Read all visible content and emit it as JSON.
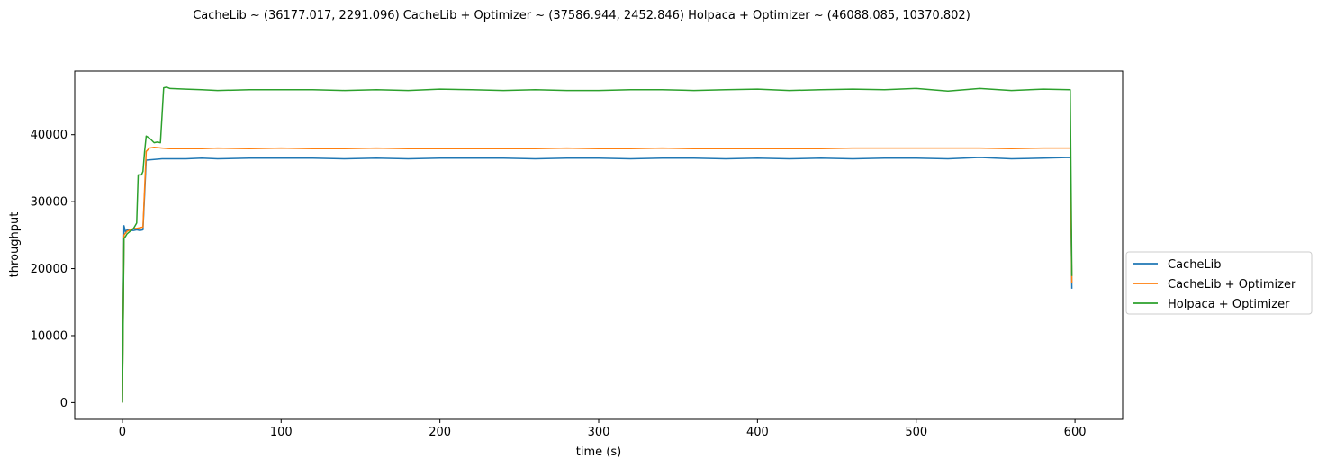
{
  "chart_data": {
    "type": "line",
    "title": "CacheLib ~ (36177.017, 2291.096)   CacheLib + Optimizer ~ (37586.944, 2452.846)   Holpaca + Optimizer ~ (46088.085, 10370.802)",
    "xlabel": "time (s)",
    "ylabel": "throughput",
    "xlim": [
      -30,
      630
    ],
    "ylim": [
      -2500,
      49500
    ],
    "xticks": [
      0,
      100,
      200,
      300,
      400,
      500,
      600
    ],
    "yticks": [
      0,
      10000,
      20000,
      30000,
      40000
    ],
    "grid": false,
    "legend_placement": "right, outside plot",
    "series": [
      {
        "name": "CacheLib",
        "color": "#1f77b4",
        "x": [
          0,
          1,
          2,
          3,
          5,
          7,
          9,
          11,
          13,
          15,
          20,
          25,
          30,
          40,
          50,
          60,
          80,
          100,
          120,
          140,
          160,
          180,
          200,
          220,
          240,
          260,
          280,
          300,
          320,
          340,
          360,
          380,
          400,
          420,
          440,
          460,
          480,
          500,
          520,
          540,
          560,
          580,
          597,
          598
        ],
        "y": [
          0,
          26400,
          25500,
          25800,
          25700,
          25700,
          25800,
          25700,
          25800,
          36200,
          36300,
          36400,
          36400,
          36400,
          36500,
          36400,
          36500,
          36500,
          36500,
          36400,
          36500,
          36400,
          36500,
          36500,
          36500,
          36400,
          36500,
          36500,
          36400,
          36500,
          36500,
          36400,
          36500,
          36400,
          36500,
          36400,
          36500,
          36500,
          36400,
          36600,
          36400,
          36500,
          36600,
          17000
        ]
      },
      {
        "name": "CacheLib + Optimizer",
        "color": "#ff7f0e",
        "x": [
          0,
          1,
          2,
          3,
          5,
          7,
          9,
          11,
          13,
          15,
          17,
          20,
          25,
          30,
          40,
          50,
          60,
          80,
          100,
          120,
          140,
          160,
          180,
          200,
          220,
          240,
          260,
          280,
          300,
          320,
          340,
          360,
          380,
          400,
          420,
          440,
          460,
          480,
          500,
          520,
          540,
          560,
          580,
          597,
          598
        ],
        "y": [
          0,
          25000,
          25300,
          25600,
          25800,
          26000,
          26000,
          26100,
          26200,
          37500,
          38000,
          38100,
          38000,
          37900,
          37900,
          37900,
          38000,
          37900,
          38000,
          37900,
          37900,
          38000,
          37900,
          37900,
          37900,
          37900,
          37900,
          38000,
          37900,
          37900,
          38000,
          37900,
          37900,
          37900,
          37900,
          37900,
          38000,
          38000,
          38000,
          38000,
          38000,
          37900,
          38000,
          38000,
          17800
        ]
      },
      {
        "name": "Holpaca + Optimizer",
        "color": "#2ca02c",
        "x": [
          0,
          1,
          2,
          3,
          5,
          7,
          9,
          10,
          12,
          13,
          14,
          15,
          17,
          20,
          22,
          24,
          26,
          28,
          30,
          40,
          50,
          60,
          80,
          100,
          120,
          140,
          160,
          180,
          200,
          220,
          240,
          260,
          280,
          300,
          320,
          340,
          360,
          380,
          400,
          420,
          440,
          460,
          480,
          500,
          520,
          540,
          560,
          580,
          597,
          598
        ],
        "y": [
          0,
          24500,
          24800,
          25200,
          25600,
          26000,
          26800,
          34000,
          34000,
          34500,
          37500,
          39800,
          39500,
          38800,
          38900,
          38800,
          47000,
          47100,
          46900,
          46800,
          46700,
          46600,
          46700,
          46700,
          46700,
          46600,
          46700,
          46600,
          46800,
          46700,
          46600,
          46700,
          46600,
          46600,
          46700,
          46700,
          46600,
          46700,
          46800,
          46600,
          46700,
          46800,
          46700,
          46900,
          46500,
          46900,
          46600,
          46800,
          46700,
          18900
        ]
      }
    ]
  }
}
